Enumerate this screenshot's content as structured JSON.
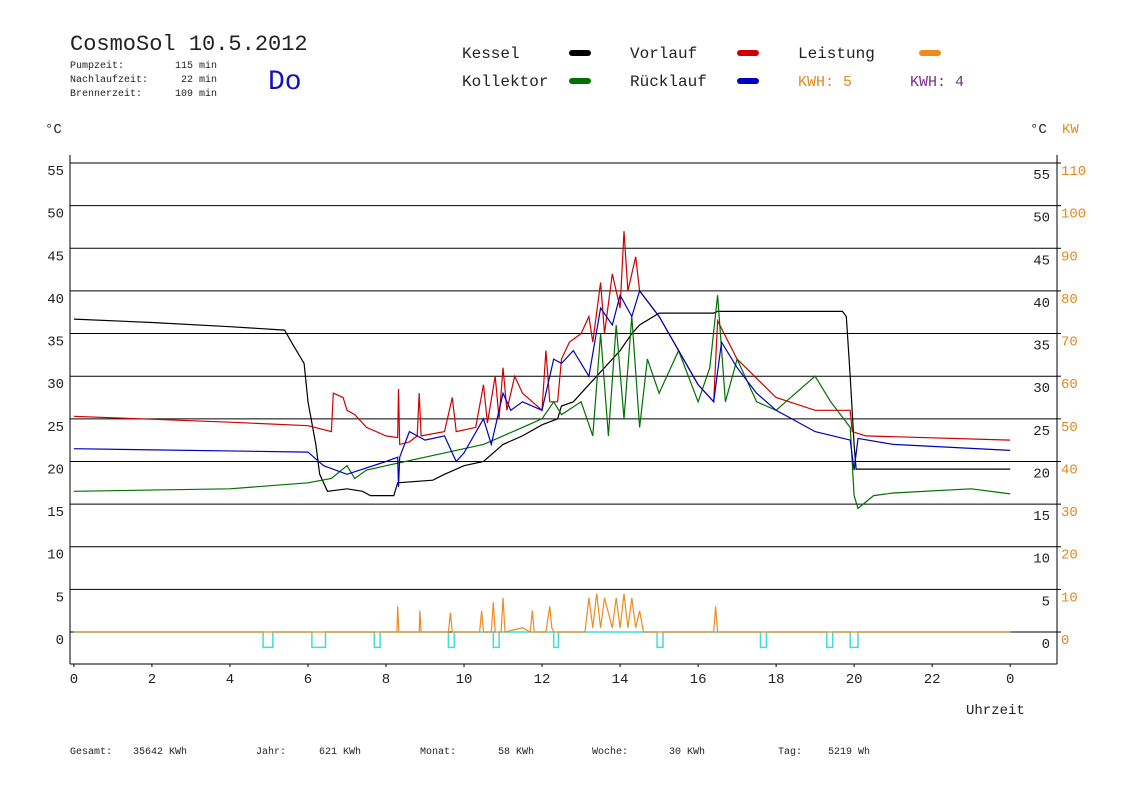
{
  "chart_data": {
    "type": "line",
    "title": "CosmoSol 10.5.2012",
    "weekday": "Do",
    "info": [
      {
        "label": "Pumpzeit:",
        "value": "115 min"
      },
      {
        "label": "Nachlaufzeit:",
        "value": "22 min"
      },
      {
        "label": "Brennerzeit:",
        "value": "109 min"
      }
    ],
    "kwh_labels": [
      {
        "text": "KWH: 5",
        "color": "#e08a1e"
      },
      {
        "text": "KWH: 4",
        "color": "#7a2a8a"
      }
    ],
    "y_label": "°C",
    "y2_label": "°C",
    "y2_unit": "KW",
    "x_label": "Uhrzeit",
    "xlim": [
      -0.1,
      25.2
    ],
    "xticks": [
      0,
      2,
      4,
      6,
      8,
      10,
      12,
      14,
      16,
      18,
      20,
      22,
      {
        "value": 24,
        "label": "0"
      }
    ],
    "ylim": [
      -3.75,
      55
    ],
    "yticks": [
      0,
      5,
      10,
      15,
      20,
      25,
      30,
      35,
      40,
      45,
      50,
      55
    ],
    "y2lim": [
      -7.5,
      110
    ],
    "y2ticks": [
      0,
      10,
      20,
      30,
      40,
      50,
      60,
      70,
      80,
      90,
      100,
      110
    ],
    "grid": true,
    "series": [
      {
        "name": "Kessel",
        "color": "#000000",
        "x": [
          0,
          2,
          4,
          5.4,
          5.6,
          5.9,
          6.0,
          6.2,
          6.3,
          6.5,
          7,
          7.4,
          7.6,
          8.2,
          8.3,
          9.2,
          9.5,
          10,
          10.5,
          11,
          11.5,
          12,
          12.4,
          12.5,
          12.8,
          13.2,
          13.6,
          14,
          14.3,
          14.5,
          15,
          16.4,
          16.5,
          19.7,
          19.8,
          19.9,
          20,
          20.05,
          24
        ],
        "values": [
          36.7,
          36.3,
          35.8,
          35.4,
          33.8,
          31.5,
          27,
          22,
          18.5,
          16.5,
          16.8,
          16.5,
          16.0,
          16.0,
          17.5,
          17.8,
          18.5,
          19.5,
          20.0,
          22,
          23,
          24.3,
          25,
          26.5,
          27,
          29,
          31,
          33,
          35,
          36,
          37.4,
          37.4,
          37.6,
          37.6,
          37,
          30,
          22,
          19.1,
          19.1
        ]
      },
      {
        "name": "Vorlauf",
        "color": "#d00000",
        "x": [
          0,
          4,
          6,
          6.6,
          6.65,
          6.9,
          7.0,
          7.2,
          7.5,
          8,
          8.3,
          8.32,
          8.35,
          8.6,
          8.8,
          8.85,
          8.9,
          9.5,
          9.7,
          9.8,
          10.3,
          10.5,
          10.6,
          10.8,
          10.9,
          11,
          11.1,
          11.3,
          11.5,
          12,
          12.1,
          12.2,
          12.4,
          12.5,
          12.7,
          13,
          13.2,
          13.3,
          13.5,
          13.6,
          13.8,
          14,
          14.1,
          14.2,
          14.4,
          14.5,
          15,
          15.5,
          16,
          16.4,
          16.5,
          17,
          18,
          19,
          19.7,
          19.9,
          19.95,
          20.3,
          24
        ],
        "values": [
          25.3,
          24.6,
          24.2,
          23.5,
          28,
          27.5,
          26,
          25.5,
          24,
          23,
          22.8,
          28.5,
          22,
          22.3,
          23,
          28,
          23,
          23.5,
          27.5,
          23.5,
          24,
          29,
          24.5,
          30,
          25,
          31,
          26,
          30,
          28,
          26,
          33,
          27,
          27,
          32,
          34,
          35,
          37,
          34,
          41,
          35,
          42,
          38,
          47,
          40,
          44,
          40,
          37,
          33,
          29,
          27,
          36.5,
          32,
          27.5,
          26,
          26,
          26,
          23.5,
          23,
          22.5
        ]
      },
      {
        "name": "Leistung",
        "color": "#f08a1e",
        "axis": "y2",
        "x": [
          0,
          8.28,
          8.3,
          8.33,
          8.85,
          8.87,
          8.9,
          9.6,
          9.65,
          9.7,
          10.4,
          10.45,
          10.5,
          10.7,
          10.75,
          10.8,
          10.95,
          11,
          11.05,
          11.5,
          11.7,
          11.75,
          11.8,
          12.1,
          12.2,
          12.25,
          12.3,
          13.1,
          13.2,
          13.3,
          13.4,
          13.5,
          13.6,
          13.8,
          13.9,
          14,
          14.1,
          14.2,
          14.3,
          14.4,
          14.5,
          14.6,
          16.4,
          16.45,
          16.5,
          24
        ],
        "values": [
          0,
          0,
          6,
          0,
          0,
          5,
          0,
          0,
          4.5,
          0,
          0,
          5,
          0,
          0,
          7,
          0,
          0,
          8,
          0,
          1,
          0,
          5,
          0,
          0,
          6,
          1,
          0,
          0,
          8,
          1,
          9,
          1,
          8,
          1,
          8,
          1,
          9,
          1,
          8,
          1,
          5,
          0,
          0,
          6,
          0,
          0
        ]
      },
      {
        "name": "Kollektor",
        "color": "#007000",
        "x": [
          0,
          4,
          6,
          6.6,
          7,
          7.2,
          7.5,
          8,
          8.5,
          9,
          9.5,
          10,
          10.5,
          11,
          11.5,
          12,
          12.3,
          12.5,
          13,
          13.3,
          13.5,
          13.7,
          13.9,
          14.1,
          14.3,
          14.5,
          14.7,
          15,
          15.5,
          16,
          16.3,
          16.5,
          16.7,
          17,
          17.5,
          18,
          18.5,
          19,
          19.4,
          19.9,
          20,
          20.1,
          20.5,
          21,
          23,
          24
        ],
        "values": [
          16.5,
          16.8,
          17.5,
          18,
          19.5,
          18,
          19,
          19.5,
          20,
          20.5,
          21,
          21.5,
          22,
          23,
          24,
          25,
          27,
          25.5,
          27,
          23,
          35,
          23,
          36,
          25,
          37,
          24,
          32,
          28,
          33,
          27,
          31,
          39.5,
          27,
          32,
          27,
          26,
          28,
          30,
          27,
          24,
          16,
          14.5,
          16,
          16.3,
          16.8,
          16.2
        ]
      },
      {
        "name": "Rücklauf",
        "color": "#0000c0",
        "x": [
          0,
          6,
          6.4,
          7,
          8,
          8.3,
          8.32,
          8.35,
          8.6,
          9,
          9.5,
          9.8,
          10,
          10.5,
          10.7,
          11,
          11.2,
          11.5,
          12,
          12.3,
          12.5,
          12.8,
          13.2,
          13.5,
          13.8,
          14,
          14.3,
          14.5,
          15,
          15.5,
          16,
          16.4,
          16.6,
          17,
          17.5,
          18,
          19,
          19.9,
          20,
          20.1,
          21,
          24
        ],
        "values": [
          21.5,
          21.1,
          19.5,
          18.5,
          20,
          20.5,
          17,
          20.5,
          23.5,
          22.5,
          23,
          20,
          21,
          25,
          22,
          28,
          26,
          27,
          26,
          32,
          31.5,
          33,
          30,
          38,
          36,
          39.5,
          37,
          40,
          37,
          33,
          29,
          27,
          34,
          31,
          28,
          26,
          23.5,
          22.5,
          19,
          22.7,
          22,
          21.3
        ]
      }
    ],
    "pump": {
      "color": "#40dcdc",
      "x": [
        0,
        4.85,
        4.85,
        5.1,
        5.1,
        6.1,
        6.1,
        6.45,
        6.45,
        7.7,
        7.7,
        7.85,
        7.85,
        9.6,
        9.6,
        9.75,
        9.75,
        10.75,
        10.75,
        10.9,
        10.9,
        12.3,
        12.3,
        12.42,
        12.42,
        14.95,
        14.95,
        15.1,
        15.1,
        17.6,
        17.6,
        17.75,
        17.75,
        19.3,
        19.3,
        19.45,
        19.45,
        19.9,
        19.9,
        20.1,
        20.1,
        24
      ],
      "values": [
        0,
        0,
        -1.8,
        -1.8,
        0,
        0,
        -1.8,
        -1.8,
        0,
        0,
        -1.8,
        -1.8,
        0,
        0,
        -1.8,
        -1.8,
        0,
        0,
        -1.8,
        -1.8,
        0,
        0,
        -1.8,
        -1.8,
        0,
        0,
        -1.8,
        -1.8,
        0,
        0,
        -1.8,
        -1.8,
        0,
        0,
        -1.8,
        -1.8,
        0,
        0,
        -1.8,
        -1.8,
        0,
        0
      ]
    },
    "totals": [
      {
        "label": "Gesamt:",
        "value": "35642 KWh"
      },
      {
        "label": "Jahr:",
        "value": "621 KWh"
      },
      {
        "label": "Monat:",
        "value": "58 KWh"
      },
      {
        "label": "Woche:",
        "value": "30 KWh"
      },
      {
        "label": "Tag:",
        "value": "5219 Wh"
      }
    ]
  }
}
